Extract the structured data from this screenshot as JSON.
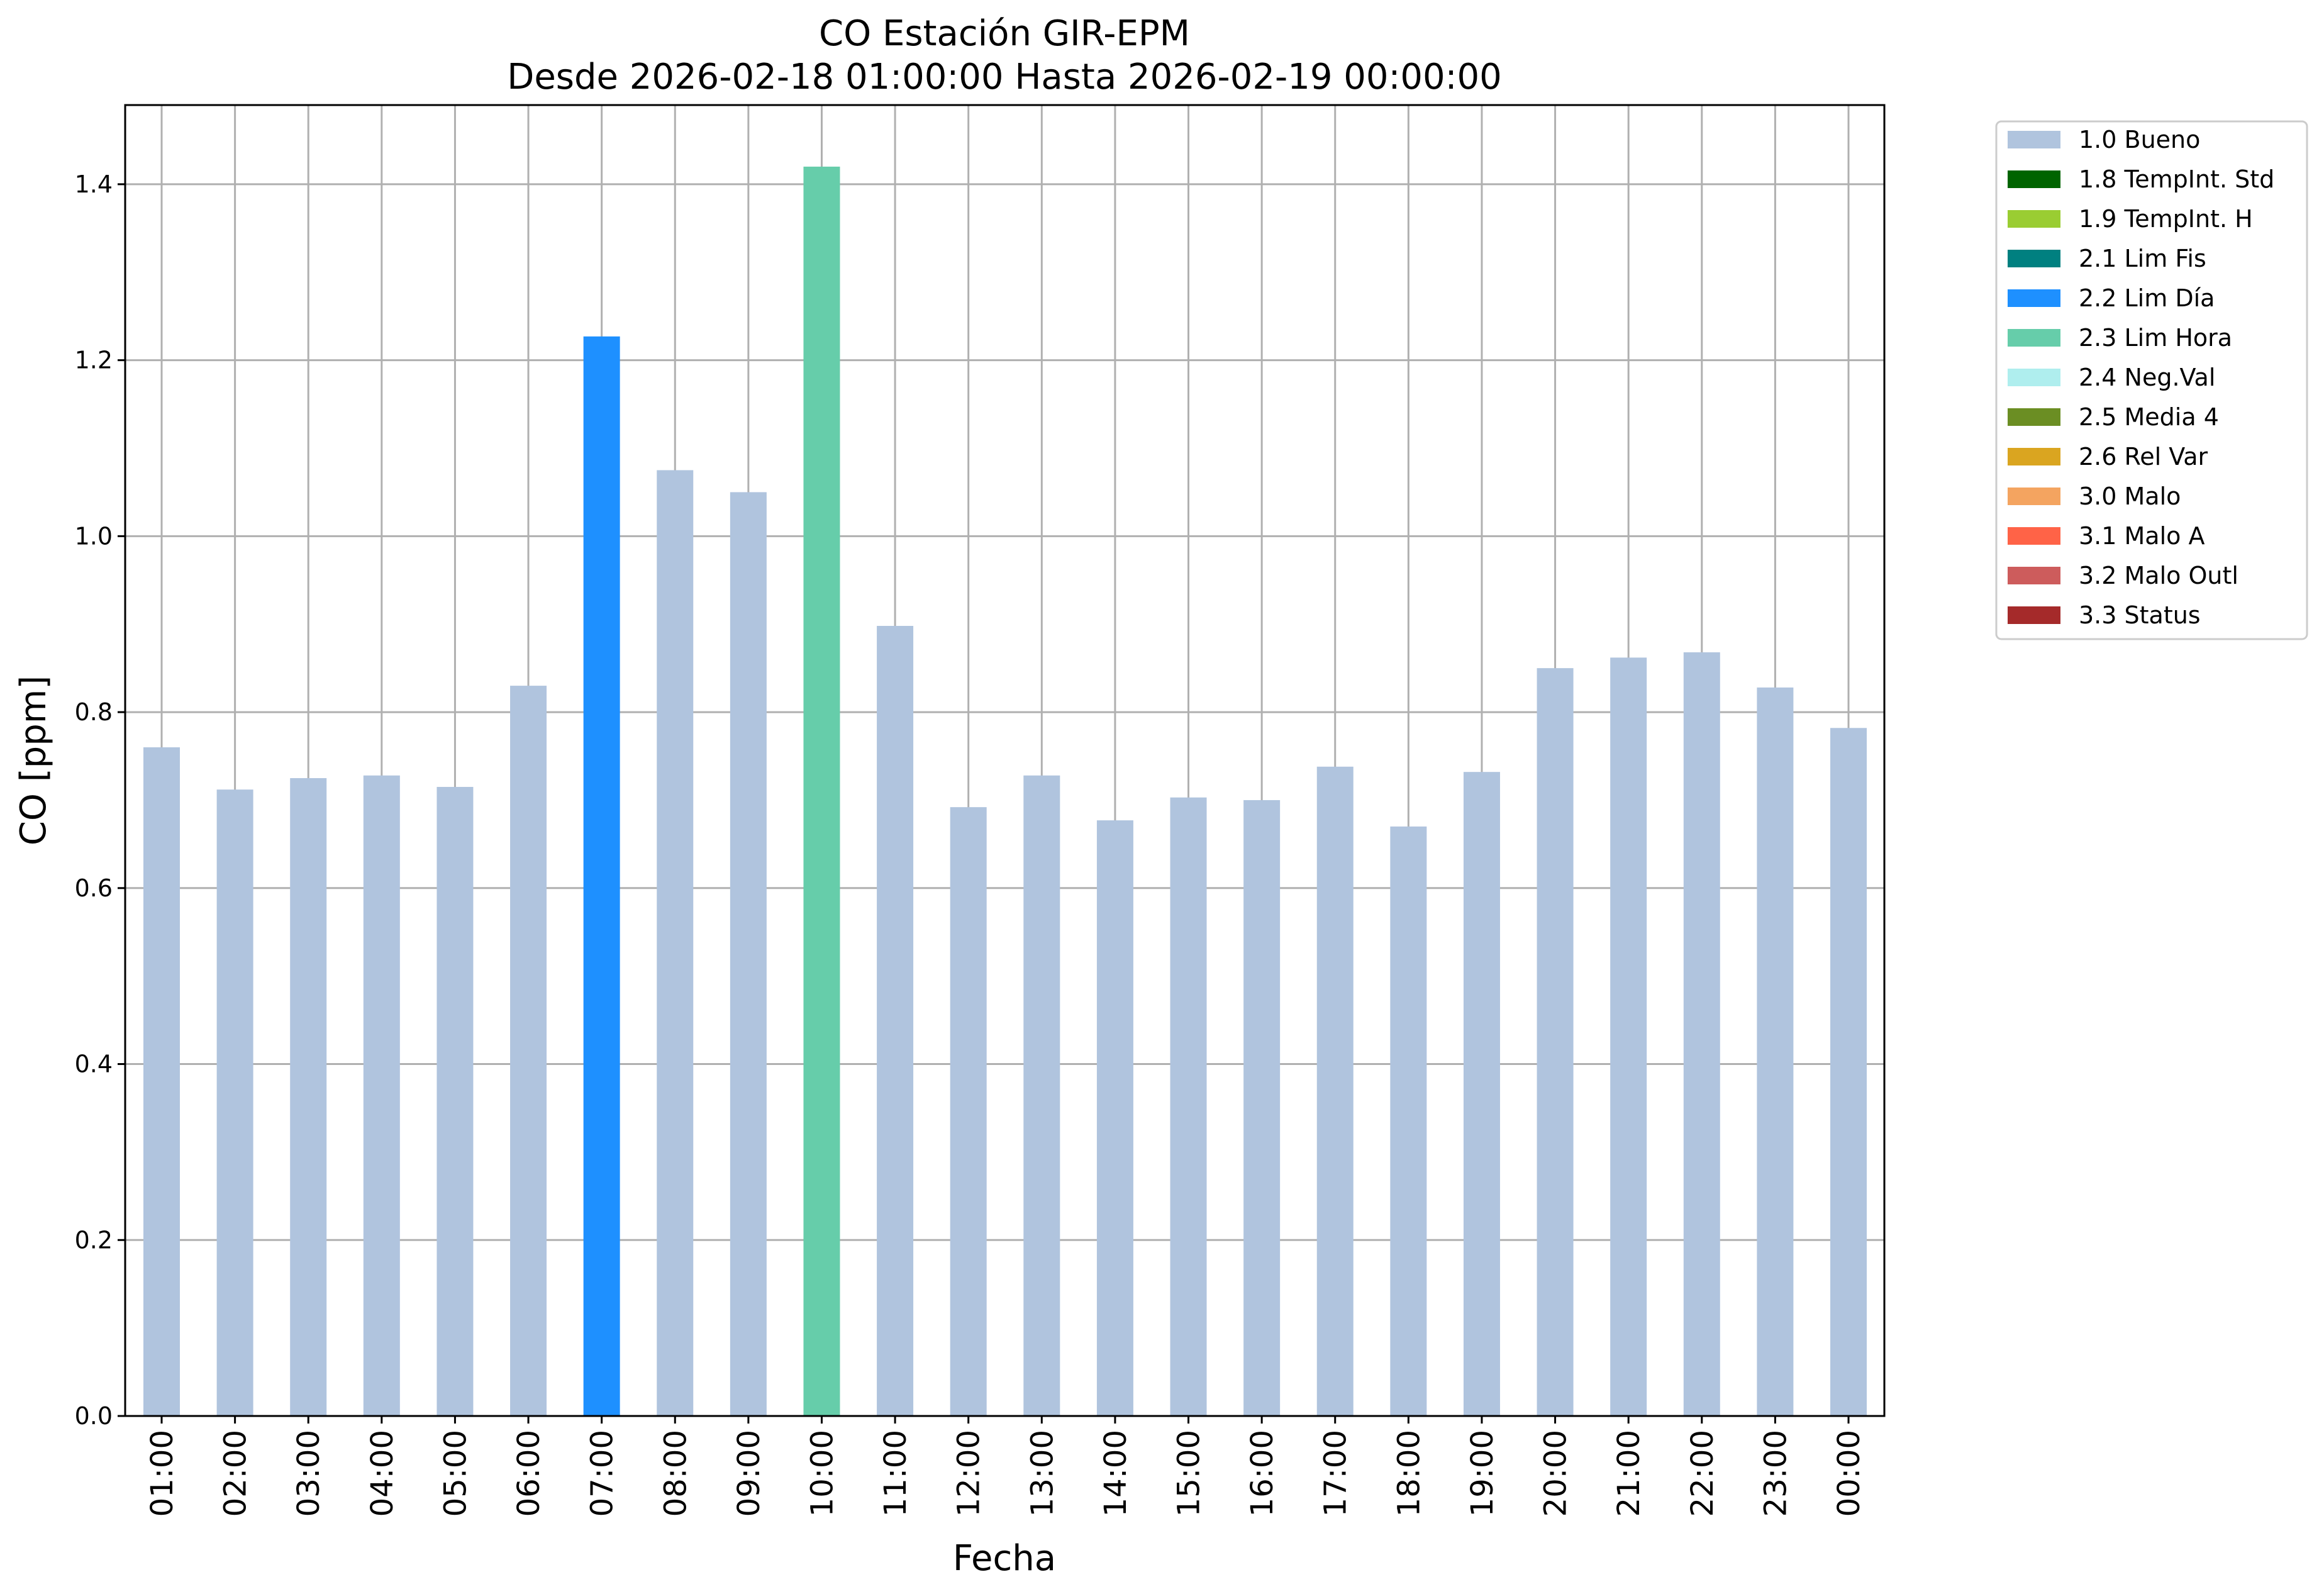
{
  "chart_data": {
    "type": "bar",
    "title": "CO Estación GIR-EPM",
    "subtitle": "Desde 2026-02-18 01:00:00 Hasta 2026-02-19 00:00:00",
    "xlabel": "Fecha",
    "ylabel": "CO [ppm]",
    "ylim": [
      0,
      1.49
    ],
    "yticks": [
      0.0,
      0.2,
      0.4,
      0.6,
      0.8,
      1.0,
      1.2,
      1.4
    ],
    "ytick_labels": [
      "0.0",
      "0.2",
      "0.4",
      "0.6",
      "0.8",
      "1.0",
      "1.2",
      "1.4"
    ],
    "grid": true,
    "legend_position": "outside-top-right",
    "categories": [
      "01:00",
      "02:00",
      "03:00",
      "04:00",
      "05:00",
      "06:00",
      "07:00",
      "08:00",
      "09:00",
      "10:00",
      "11:00",
      "12:00",
      "13:00",
      "14:00",
      "15:00",
      "16:00",
      "17:00",
      "18:00",
      "19:00",
      "20:00",
      "21:00",
      "22:00",
      "23:00",
      "00:00"
    ],
    "values": [
      0.76,
      0.712,
      0.725,
      0.728,
      0.715,
      0.83,
      1.227,
      1.075,
      1.05,
      1.42,
      0.898,
      0.692,
      0.728,
      0.677,
      0.703,
      0.7,
      0.738,
      0.67,
      0.732,
      0.85,
      0.862,
      0.868,
      0.828,
      0.782
    ],
    "bar_flags": [
      "1.0 Bueno",
      "1.0 Bueno",
      "1.0 Bueno",
      "1.0 Bueno",
      "1.0 Bueno",
      "1.0 Bueno",
      "2.2 Lim Día",
      "1.0 Bueno",
      "1.0 Bueno",
      "2.3 Lim Hora",
      "1.0 Bueno",
      "1.0 Bueno",
      "1.0 Bueno",
      "1.0 Bueno",
      "1.0 Bueno",
      "1.0 Bueno",
      "1.0 Bueno",
      "1.0 Bueno",
      "1.0 Bueno",
      "1.0 Bueno",
      "1.0 Bueno",
      "1.0 Bueno",
      "1.0 Bueno",
      "1.0 Bueno"
    ],
    "legend": [
      {
        "label": "1.0 Bueno",
        "color": "#b0c4de"
      },
      {
        "label": "1.8 TempInt. Std",
        "color": "#006400"
      },
      {
        "label": "1.9 TempInt. H",
        "color": "#9acd32"
      },
      {
        "label": "2.1 Lim Fis",
        "color": "#008080"
      },
      {
        "label": "2.2 Lim Día",
        "color": "#1e90ff"
      },
      {
        "label": "2.3 Lim Hora",
        "color": "#66cdaa"
      },
      {
        "label": "2.4 Neg.Val",
        "color": "#afeeee"
      },
      {
        "label": "2.5 Media 4",
        "color": "#6b8e23"
      },
      {
        "label": "2.6 Rel Var",
        "color": "#daa520"
      },
      {
        "label": "3.0 Malo",
        "color": "#f4a460"
      },
      {
        "label": "3.1 Malo A",
        "color": "#ff6347"
      },
      {
        "label": "3.2 Malo Outl",
        "color": "#cd5c5c"
      },
      {
        "label": "3.3 Status",
        "color": "#a52a2a"
      }
    ]
  }
}
